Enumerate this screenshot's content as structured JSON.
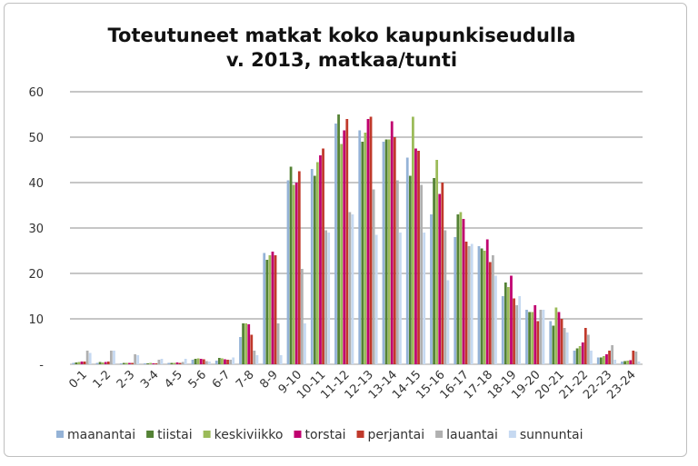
{
  "chart_data": {
    "type": "bar",
    "title_line1": "Toteutuneet matkat koko kaupunkiseudulla",
    "title_line2": "v. 2013, matkaa/tunti",
    "xlabel": "",
    "ylabel": "",
    "ylim": [
      0,
      60
    ],
    "yticks": [
      "-",
      "10",
      "20",
      "30",
      "40",
      "50",
      "60"
    ],
    "grid": true,
    "legend_position": "bottom",
    "categories": [
      "0-1",
      "1-2",
      "2-3",
      "3-4",
      "4-5",
      "5-6",
      "6-7",
      "7-8",
      "8-9",
      "9-10",
      "10-11",
      "11-12",
      "12-13",
      "13-14",
      "14-15",
      "15-16",
      "16-17",
      "17-18",
      "18-19",
      "19-20",
      "20-21",
      "21-22",
      "22-23",
      "23-24"
    ],
    "series": [
      {
        "name": "maanantai",
        "color": "#95b3d7",
        "values": [
          0.3,
          0.3,
          0.2,
          0.2,
          0.3,
          1.0,
          0.8,
          6.0,
          24.5,
          40.5,
          43.0,
          53.0,
          51.5,
          49.0,
          45.5,
          33.0,
          28.0,
          26.0,
          15.0,
          12.0,
          9.5,
          3.0,
          1.5,
          0.6
        ]
      },
      {
        "name": "tiistai",
        "color": "#548235",
        "values": [
          0.4,
          0.5,
          0.3,
          0.2,
          0.3,
          1.2,
          1.4,
          9.0,
          23.0,
          43.5,
          41.5,
          55.0,
          49.0,
          49.5,
          41.5,
          41.0,
          33.0,
          25.5,
          18.0,
          11.5,
          8.5,
          3.5,
          1.5,
          0.7
        ]
      },
      {
        "name": "keskiviikko",
        "color": "#9bbb59",
        "values": [
          0.5,
          0.4,
          0.3,
          0.3,
          0.3,
          1.3,
          1.3,
          9.0,
          24.0,
          39.5,
          44.5,
          48.5,
          51.0,
          49.5,
          54.5,
          45.0,
          33.5,
          25.0,
          17.0,
          11.5,
          12.5,
          4.0,
          1.8,
          0.8
        ]
      },
      {
        "name": "torstai",
        "color": "#c0006f",
        "values": [
          0.6,
          0.5,
          0.3,
          0.2,
          0.4,
          1.2,
          1.1,
          8.8,
          24.8,
          40.0,
          46.0,
          51.5,
          54.0,
          53.5,
          47.5,
          37.5,
          32.0,
          27.5,
          19.5,
          13.0,
          11.5,
          4.8,
          2.2,
          0.9
        ]
      },
      {
        "name": "perjantai",
        "color": "#c0392b",
        "values": [
          0.6,
          0.6,
          0.3,
          0.2,
          0.3,
          1.1,
          1.0,
          6.5,
          24.0,
          42.5,
          47.5,
          54.0,
          54.5,
          50.0,
          47.0,
          40.0,
          27.0,
          22.5,
          14.5,
          9.5,
          10.0,
          8.0,
          3.0,
          3.0
        ]
      },
      {
        "name": "lauantai",
        "color": "#b0b0b0",
        "values": [
          3.0,
          3.0,
          2.2,
          1.0,
          0.5,
          0.7,
          1.0,
          3.0,
          9.0,
          21.0,
          29.5,
          33.5,
          38.5,
          40.5,
          39.5,
          29.5,
          26.0,
          24.0,
          13.0,
          12.0,
          8.0,
          6.5,
          4.2,
          2.8
        ]
      },
      {
        "name": "sunnuntai",
        "color": "#c6d9f1",
        "values": [
          2.5,
          3.0,
          2.0,
          1.2,
          1.2,
          0.6,
          1.5,
          2.0,
          2.0,
          9.0,
          29.0,
          33.0,
          28.5,
          29.0,
          29.0,
          18.5,
          26.5,
          19.5,
          15.0,
          12.0,
          7.0,
          3.0,
          1.0,
          0.6
        ]
      }
    ]
  }
}
